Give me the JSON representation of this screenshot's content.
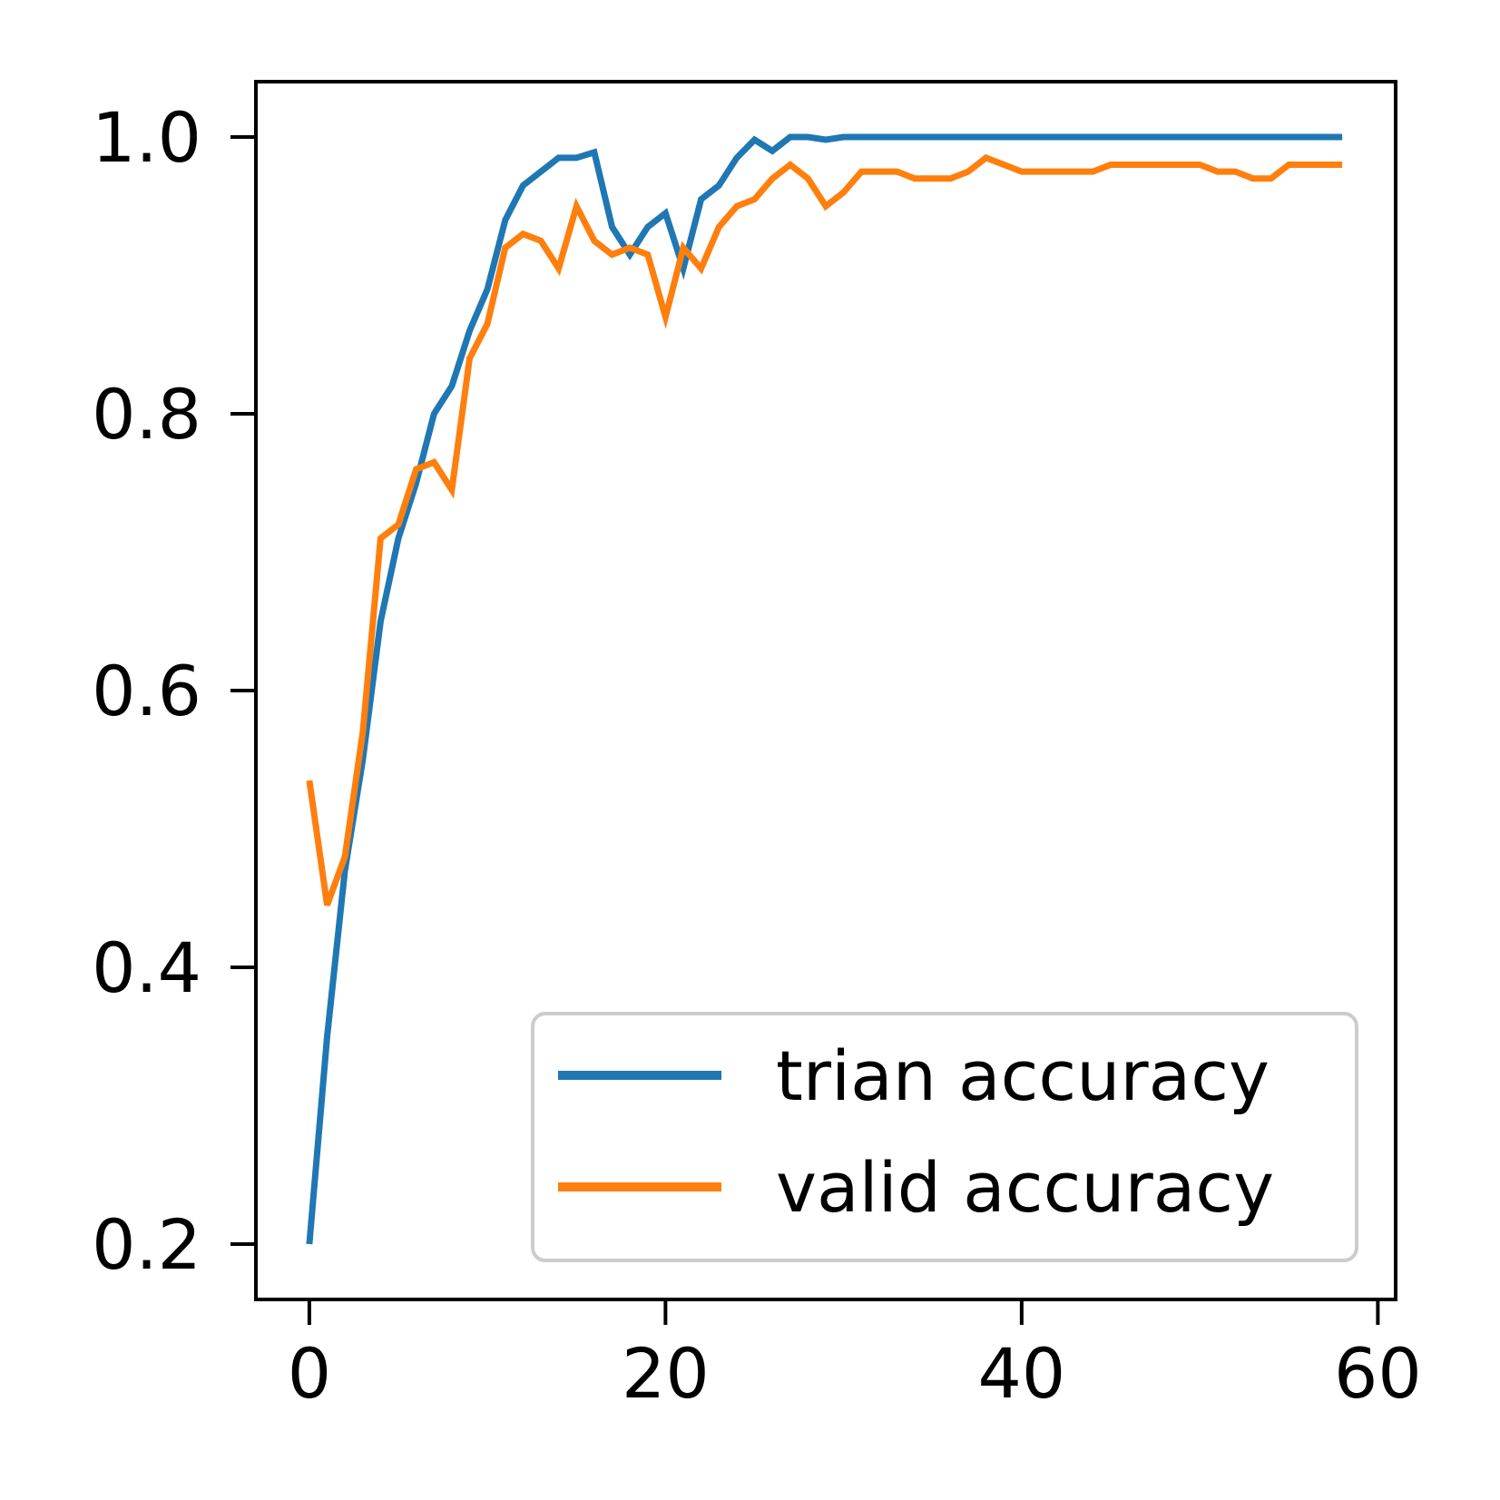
{
  "chart_data": {
    "type": "line",
    "title": "",
    "xlabel": "",
    "ylabel": "",
    "xlim": [
      -3,
      61
    ],
    "ylim": [
      0.16,
      1.04
    ],
    "xticks": [
      0,
      20,
      40,
      60
    ],
    "xtick_labels": [
      "0",
      "20",
      "40",
      "60"
    ],
    "yticks": [
      0.2,
      0.4,
      0.6,
      0.8,
      1.0
    ],
    "ytick_labels": [
      "0.2",
      "0.4",
      "0.6",
      "0.8",
      "1.0"
    ],
    "grid": false,
    "legend_position": "lower-right",
    "x": [
      0,
      1,
      2,
      3,
      4,
      5,
      6,
      7,
      8,
      9,
      10,
      11,
      12,
      13,
      14,
      15,
      16,
      17,
      18,
      19,
      20,
      21,
      22,
      23,
      24,
      25,
      26,
      27,
      28,
      29,
      30,
      31,
      32,
      33,
      34,
      35,
      36,
      37,
      38,
      39,
      40,
      41,
      42,
      43,
      44,
      45,
      46,
      47,
      48,
      49,
      50,
      51,
      52,
      53,
      54,
      55,
      56,
      57,
      58
    ],
    "series": [
      {
        "name": "trian accuracy",
        "color": "#1f77b4",
        "values": [
          0.2,
          0.35,
          0.47,
          0.55,
          0.65,
          0.71,
          0.75,
          0.8,
          0.82,
          0.86,
          0.89,
          0.94,
          0.965,
          0.975,
          0.985,
          0.985,
          0.989,
          0.935,
          0.915,
          0.935,
          0.945,
          0.905,
          0.955,
          0.965,
          0.985,
          0.998,
          0.99,
          1.0,
          1.0,
          0.998,
          1.0,
          1.0,
          1.0,
          1.0,
          1.0,
          1.0,
          1.0,
          1.0,
          1.0,
          1.0,
          1.0,
          1.0,
          1.0,
          1.0,
          1.0,
          1.0,
          1.0,
          1.0,
          1.0,
          1.0,
          1.0,
          1.0,
          1.0,
          1.0,
          1.0,
          1.0,
          1.0,
          1.0,
          1.0
        ]
      },
      {
        "name": "valid accuracy",
        "color": "#ff7f0e",
        "values": [
          0.535,
          0.445,
          0.48,
          0.57,
          0.71,
          0.72,
          0.76,
          0.765,
          0.745,
          0.84,
          0.865,
          0.92,
          0.93,
          0.925,
          0.905,
          0.95,
          0.925,
          0.915,
          0.92,
          0.915,
          0.87,
          0.92,
          0.905,
          0.935,
          0.95,
          0.955,
          0.97,
          0.98,
          0.97,
          0.95,
          0.96,
          0.975,
          0.975,
          0.975,
          0.97,
          0.97,
          0.97,
          0.975,
          0.985,
          0.98,
          0.975,
          0.975,
          0.975,
          0.975,
          0.975,
          0.98,
          0.98,
          0.98,
          0.98,
          0.98,
          0.98,
          0.975,
          0.975,
          0.97,
          0.97,
          0.98,
          0.98,
          0.98,
          0.98
        ]
      }
    ]
  }
}
